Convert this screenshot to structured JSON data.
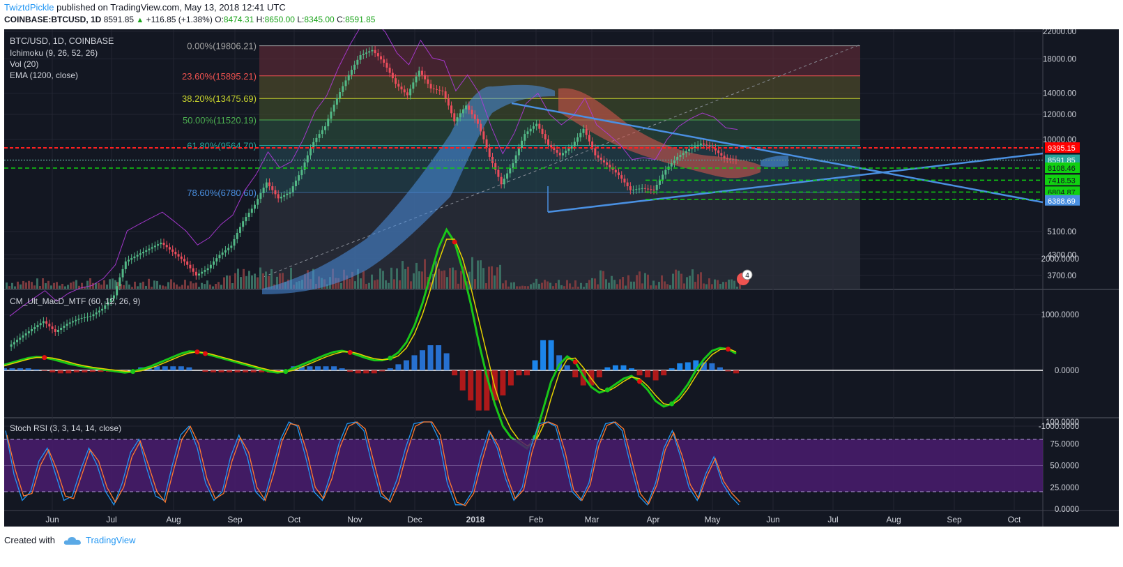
{
  "header": {
    "author": "TwiztdPickle",
    "published": "published on TradingView.com, May 13, 2018 12:41 UTC",
    "symbol": "COINBASE:BTCUSD, 1D",
    "last": "8591.85",
    "change": "+116.85 (+1.38%)",
    "o_label": "O:",
    "o_value": "8474.31",
    "h_label": "H:",
    "h_value": "8650.00",
    "l_label": "L:",
    "l_value": "8345.00",
    "c_label": "C:",
    "c_value": "8591.85"
  },
  "legend": {
    "line1": "BTC/USD, 1D, COINBASE",
    "line2": "Ichimoku (9, 26, 52, 26)",
    "line3": "Vol (20)",
    "line4": "EMA (1200, close)",
    "macd": "CM_Ult_MacD_MTF (60, 12, 26, 9)",
    "stoch": "Stoch RSI (3, 3, 14, 14, close)"
  },
  "footer": {
    "created_with": "Created with",
    "brand": "TradingView"
  },
  "colors": {
    "background": "#131722",
    "up": "#26a69a",
    "down": "#ef5350",
    "trendline": "#4a90e2",
    "support": "#32cd32",
    "resistance": "#ff2020",
    "stoch_band": "#4a1c6e",
    "macd_up": "#19c619",
    "macd_down": "#e01010"
  },
  "chart_data": [
    {
      "type": "candlestick",
      "title": "BTC/USD, 1D, COINBASE",
      "x_ticks": [
        "Jun",
        "Jul",
        "Aug",
        "Sep",
        "Oct",
        "Nov",
        "Dec",
        "2018",
        "Feb",
        "Mar",
        "Apr",
        "May",
        "Jun",
        "Jul",
        "Aug",
        "Sep",
        "Oct"
      ],
      "y_ticks": [
        "22000.00",
        "18000.00",
        "14000.00",
        "12000.00",
        "10000.00",
        "5100.00",
        "4300.00",
        "3700.00"
      ],
      "y_scale": "log",
      "fibonacci": [
        {
          "label": "0.00%(19806.21)",
          "value": 19806.21,
          "color": "#9e9e9e"
        },
        {
          "label": "23.60%(15895.21)",
          "value": 15895.21,
          "color": "#ef5350"
        },
        {
          "label": "38.20%(13475.69)",
          "value": 13475.69,
          "color": "#c7d32d"
        },
        {
          "label": "50.00%(11520.19)",
          "value": 11520.19,
          "color": "#4caf50"
        },
        {
          "label": "61.80%(9564.70)",
          "value": 9564.7,
          "color": "#26a69a"
        },
        {
          "label": "78.60%(6780.60)",
          "value": 6780.6,
          "color": "#4a90e2"
        }
      ],
      "price_labels": [
        {
          "text": "9395.15",
          "value": 9395.15,
          "color": "#ff0000"
        },
        {
          "text": "8591.85",
          "value": 8591.85,
          "color": "#26a69a"
        },
        {
          "text": "8108.46",
          "value": 8108.46,
          "color": "#11d011"
        },
        {
          "text": "7418.53",
          "value": 7418.53,
          "color": "#11d011"
        },
        {
          "text": "6804.87",
          "value": 6804.87,
          "color": "#11d011"
        },
        {
          "text": "6449.55",
          "value": 6449.55,
          "color": "#11d011"
        },
        {
          "text": "6388.69",
          "value": 6388.69,
          "color": "#4a90e2"
        }
      ],
      "events_badge": "4",
      "close_path": [
        2200,
        2350,
        2500,
        2650,
        2450,
        2600,
        2700,
        2750,
        2900,
        3200,
        4100,
        4300,
        4500,
        4700,
        4400,
        4100,
        3700,
        3900,
        4300,
        4600,
        5500,
        6200,
        7300,
        6500,
        6800,
        8000,
        9800,
        11000,
        13500,
        16000,
        18500,
        19200,
        17500,
        15000,
        13800,
        16500,
        14500,
        14200,
        11400,
        12800,
        11200,
        8800,
        7200,
        8400,
        10400,
        11200,
        9600,
        8900,
        9500,
        10800,
        8900,
        8300,
        7700,
        6900,
        7000,
        6900,
        8000,
        8800,
        9300,
        9700,
        9400,
        8700,
        8600
      ]
    },
    {
      "type": "line",
      "title": "CM_Ult_MacD_MTF (60, 12, 26, 9)",
      "y_ticks": [
        "2000.0000",
        "1000.0000",
        "0.0000",
        "-1000.0000"
      ],
      "series": [
        {
          "values": [
            100,
            140,
            180,
            220,
            240,
            230,
            200,
            160,
            120,
            90,
            60,
            40,
            20,
            0,
            -20,
            -40,
            -20,
            20,
            60,
            120,
            180,
            240,
            300,
            340,
            330,
            300,
            260,
            220,
            180,
            140,
            100,
            60,
            20,
            -20,
            -40,
            -20,
            40,
            100,
            160,
            220,
            280,
            330,
            350,
            320,
            270,
            220,
            180,
            180,
            220,
            320,
            500,
            800,
            1200,
            1700,
            2200,
            2520,
            2300,
            1800,
            1200,
            500,
            -100,
            -600,
            -1000,
            -1200,
            -1300,
            -1400,
            -1200,
            -700,
            -200,
            100,
            250,
            150,
            -100,
            -300,
            -400,
            -350,
            -250,
            -150,
            -100,
            -200,
            -350,
            -550,
            -650,
            -600,
            -450,
            -250,
            0,
            200,
            350,
            400,
            380,
            300
          ]
        },
        {
          "values": [
            80,
            120,
            160,
            200,
            230,
            235,
            220,
            190,
            150,
            110,
            80,
            55,
            35,
            15,
            0,
            -15,
            -25,
            -10,
            30,
            80,
            140,
            200,
            260,
            310,
            330,
            315,
            280,
            240,
            200,
            160,
            120,
            80,
            40,
            5,
            -20,
            -25,
            0,
            60,
            120,
            180,
            240,
            290,
            330,
            335,
            300,
            250,
            210,
            190,
            200,
            260,
            400,
            650,
            1000,
            1450,
            1950,
            2350,
            2350,
            2000,
            1500,
            900,
            300,
            -300,
            -750,
            -1050,
            -1250,
            -1350,
            -1300,
            -1000,
            -500,
            -50,
            200,
            220,
            50,
            -150,
            -330,
            -380,
            -300,
            -200,
            -120,
            -150,
            -280,
            -450,
            -600,
            -620,
            -520,
            -330,
            -100,
            120,
            280,
            370,
            390,
            330
          ]
        }
      ]
    },
    {
      "type": "line",
      "title": "Stoch RSI (3, 3, 14, 14, close)",
      "y_ticks": [
        "100.0000",
        "75.0000",
        "50.0000",
        "25.0000",
        "0.0000"
      ],
      "band": [
        20,
        80
      ],
      "series": [
        {
          "values": [
            90,
            40,
            10,
            20,
            55,
            70,
            40,
            10,
            15,
            45,
            70,
            50,
            20,
            5,
            30,
            65,
            80,
            45,
            15,
            10,
            50,
            85,
            95,
            70,
            30,
            10,
            20,
            60,
            85,
            60,
            20,
            10,
            45,
            80,
            100,
            95,
            60,
            20,
            10,
            40,
            75,
            98,
            100,
            90,
            50,
            15,
            10,
            35,
            70,
            98,
            100,
            100,
            80,
            30,
            5,
            5,
            20,
            60,
            90,
            70,
            35,
            10,
            25,
            70,
            98,
            100,
            95,
            60,
            20,
            10,
            30,
            75,
            98,
            100,
            90,
            50,
            15,
            5,
            30,
            70,
            90,
            60,
            25,
            10,
            40,
            60,
            30,
            15,
            5
          ]
        },
        {
          "values": [
            85,
            45,
            15,
            18,
            50,
            68,
            45,
            15,
            12,
            40,
            68,
            55,
            25,
            8,
            25,
            60,
            78,
            50,
            20,
            8,
            45,
            80,
            95,
            75,
            35,
            12,
            18,
            55,
            82,
            65,
            25,
            10,
            40,
            78,
            98,
            96,
            65,
            25,
            12,
            35,
            72,
            95,
            100,
            92,
            55,
            18,
            8,
            30,
            65,
            95,
            100,
            100,
            85,
            35,
            8,
            4,
            18,
            55,
            88,
            72,
            38,
            12,
            22,
            65,
            96,
            100,
            96,
            65,
            22,
            10,
            28,
            72,
            96,
            100,
            92,
            55,
            18,
            6,
            28,
            68,
            88,
            62,
            28,
            12,
            38,
            58,
            32,
            18,
            8
          ]
        }
      ]
    }
  ]
}
